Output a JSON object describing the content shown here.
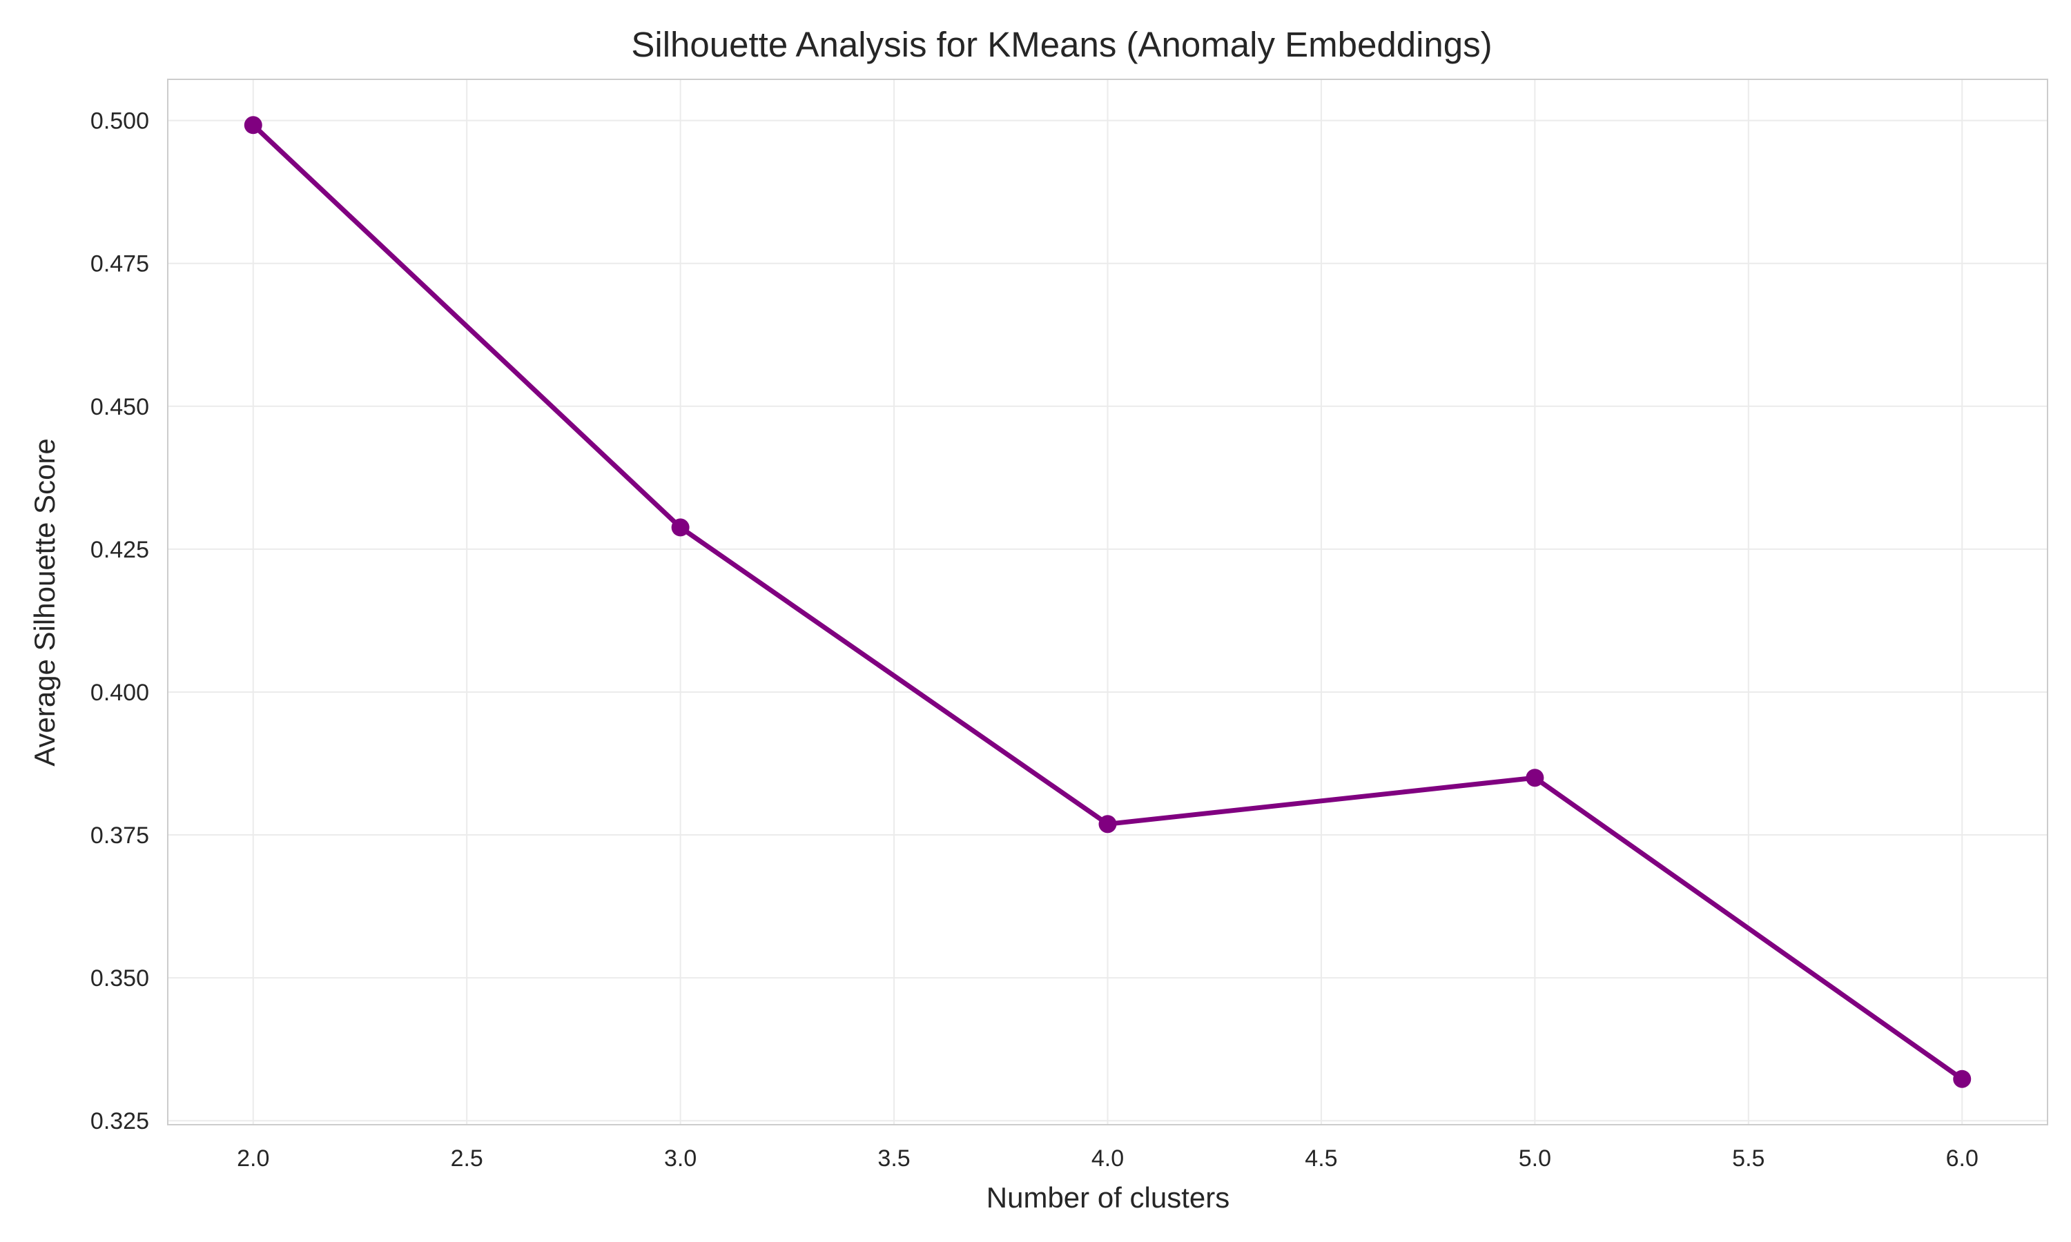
{
  "chart_data": {
    "type": "line",
    "title": "Silhouette Analysis for KMeans (Anomaly Embeddings)",
    "xlabel": "Number of clusters",
    "ylabel": "Average Silhouette Score",
    "x": [
      2,
      3,
      4,
      5,
      6
    ],
    "series": [
      {
        "values": [
          0.4992,
          0.4288,
          0.3769,
          0.385,
          0.3323
        ]
      }
    ],
    "xlim": [
      1.8,
      6.2
    ],
    "ylim": [
      0.3243,
      0.5072
    ],
    "xticks": [
      2.0,
      2.5,
      3.0,
      3.5,
      4.0,
      4.5,
      5.0,
      5.5,
      6.0
    ],
    "xtick_labels": [
      "2.0",
      "2.5",
      "3.0",
      "3.5",
      "4.0",
      "4.5",
      "5.0",
      "5.5",
      "6.0"
    ],
    "yticks": [
      0.325,
      0.35,
      0.375,
      0.4,
      0.425,
      0.45,
      0.475,
      0.5
    ],
    "ytick_labels": [
      "0.325",
      "0.350",
      "0.375",
      "0.400",
      "0.425",
      "0.450",
      "0.475",
      "0.500"
    ],
    "grid": true,
    "marker": "circle",
    "line_color": "#800080",
    "grid_color": "#ebebeb",
    "spine_color": "#cccccc"
  }
}
